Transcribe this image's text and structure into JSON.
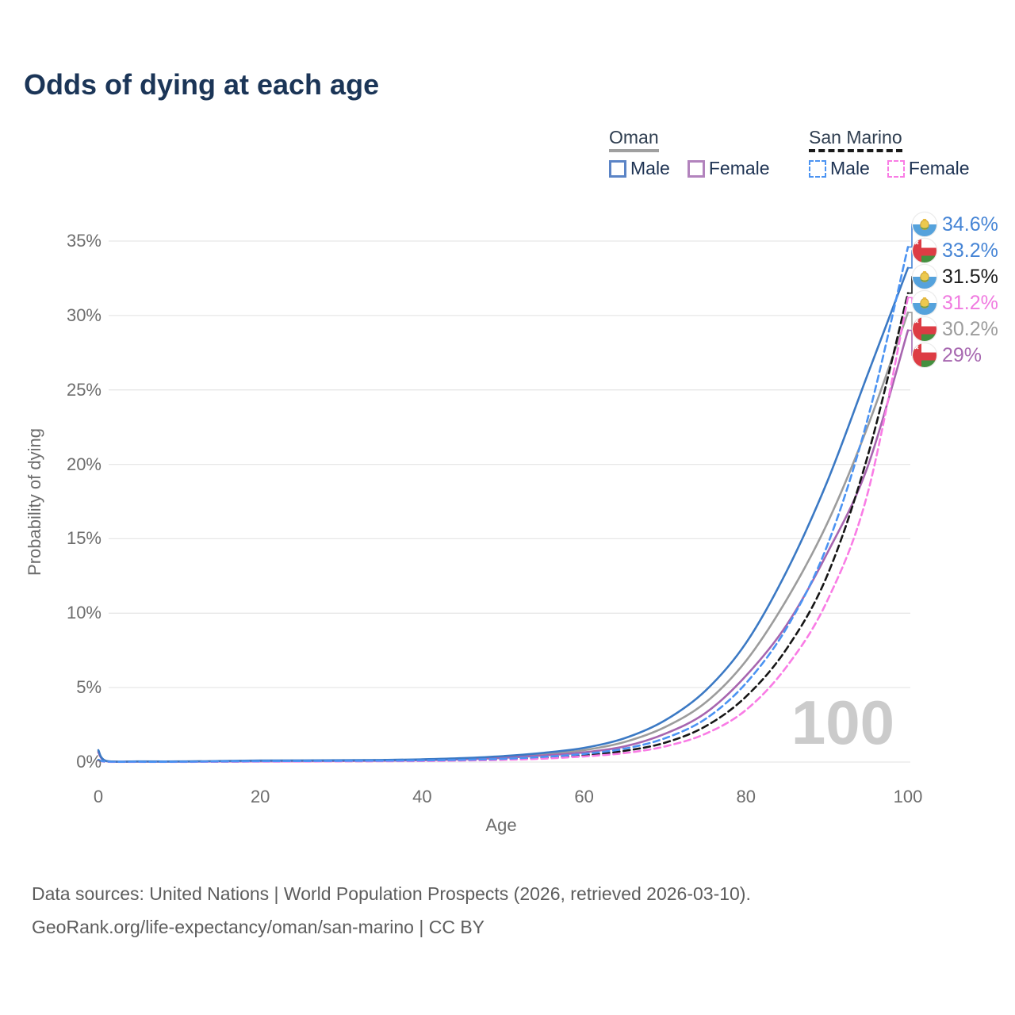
{
  "title": "Odds of dying at each age",
  "legend": {
    "groups": [
      {
        "name": "Oman",
        "line_style": "solid",
        "line_color": "#a0a0a0",
        "items": [
          {
            "label": "Male",
            "color": "#5b84c6",
            "dashed": false
          },
          {
            "label": "Female",
            "color": "#b283bd",
            "dashed": false
          }
        ]
      },
      {
        "name": "San Marino",
        "line_style": "dashed",
        "line_color": "#1a1a1a",
        "items": [
          {
            "label": "Male",
            "color": "#4b93f2",
            "dashed": true
          },
          {
            "label": "Female",
            "color": "#f97ce5",
            "dashed": true
          }
        ]
      }
    ]
  },
  "axes": {
    "y_title": "Probability of dying",
    "x_title": "Age",
    "y_ticks": [
      "0%",
      "5%",
      "10%",
      "15%",
      "20%",
      "25%",
      "30%",
      "35%"
    ],
    "y_tick_values": [
      0,
      5,
      10,
      15,
      20,
      25,
      30,
      35
    ],
    "x_ticks": [
      "0",
      "20",
      "40",
      "60",
      "80",
      "100"
    ],
    "x_tick_values": [
      0,
      20,
      40,
      60,
      80,
      100
    ],
    "x_range": [
      0,
      100
    ],
    "y_range_pct": [
      0,
      35
    ],
    "grid": "horizontal"
  },
  "watermark": "100",
  "chart_data": {
    "type": "line",
    "title": "Odds of dying at each age",
    "xlabel": "Age",
    "ylabel": "Probability of dying",
    "x": [
      0,
      1,
      5,
      10,
      15,
      20,
      25,
      30,
      35,
      40,
      45,
      50,
      55,
      60,
      65,
      70,
      75,
      80,
      85,
      90,
      95,
      100
    ],
    "unit": "percent",
    "series": [
      {
        "name": "San Marino Male",
        "country": "San Marino",
        "sex": "Male",
        "color": "#4b93f2",
        "label_color": "#4584d5",
        "dashed": true,
        "flag": "san-marino",
        "end_label": "34.6%",
        "values": [
          0.15,
          0.03,
          0.02,
          0.02,
          0.04,
          0.06,
          0.07,
          0.08,
          0.09,
          0.11,
          0.15,
          0.22,
          0.35,
          0.55,
          0.9,
          1.6,
          2.9,
          5.3,
          9.0,
          14.5,
          23.0,
          34.6
        ]
      },
      {
        "name": "Oman Male",
        "country": "Oman",
        "sex": "Male",
        "color": "#3b79c4",
        "label_color": "#4584d5",
        "dashed": false,
        "flag": "oman",
        "end_label": "33.2%",
        "values": [
          0.8,
          0.07,
          0.04,
          0.04,
          0.07,
          0.1,
          0.11,
          0.12,
          0.14,
          0.18,
          0.26,
          0.4,
          0.62,
          0.95,
          1.6,
          2.8,
          4.8,
          8.0,
          12.8,
          18.8,
          26.0,
          33.2
        ]
      },
      {
        "name": "San Marino Both sexes",
        "country": "San Marino",
        "sex": "Both",
        "color": "#161616",
        "label_color": "#1a1a1a",
        "dashed": true,
        "flag": "san-marino",
        "end_label": "31.5%",
        "values": [
          0.13,
          0.025,
          0.015,
          0.015,
          0.03,
          0.045,
          0.05,
          0.06,
          0.07,
          0.09,
          0.12,
          0.18,
          0.28,
          0.45,
          0.75,
          1.3,
          2.4,
          4.4,
          7.6,
          12.5,
          20.5,
          31.5
        ]
      },
      {
        "name": "San Marino Female",
        "country": "San Marino",
        "sex": "Female",
        "color": "#f97ce5",
        "label_color": "#f07ae0",
        "dashed": true,
        "flag": "san-marino",
        "end_label": "31.2%",
        "values": [
          0.12,
          0.02,
          0.01,
          0.01,
          0.02,
          0.03,
          0.035,
          0.045,
          0.055,
          0.07,
          0.1,
          0.15,
          0.23,
          0.38,
          0.6,
          1.05,
          1.9,
          3.5,
          6.4,
          10.8,
          18.0,
          31.2
        ]
      },
      {
        "name": "Oman Both sexes",
        "country": "Oman",
        "sex": "Both",
        "color": "#9c9c9c",
        "label_color": "#9c9c9c",
        "dashed": false,
        "flag": "oman",
        "end_label": "30.2%",
        "values": [
          0.72,
          0.065,
          0.035,
          0.035,
          0.055,
          0.075,
          0.085,
          0.095,
          0.115,
          0.15,
          0.22,
          0.34,
          0.53,
          0.8,
          1.35,
          2.35,
          4.0,
          6.8,
          10.9,
          16.0,
          22.5,
          30.2
        ]
      },
      {
        "name": "Oman Female",
        "country": "Oman",
        "sex": "Female",
        "color": "#a765af",
        "label_color": "#a768b0",
        "dashed": false,
        "flag": "oman",
        "end_label": "29%",
        "values": [
          0.65,
          0.06,
          0.03,
          0.03,
          0.04,
          0.05,
          0.06,
          0.07,
          0.09,
          0.12,
          0.18,
          0.28,
          0.44,
          0.65,
          1.05,
          1.9,
          3.3,
          5.8,
          9.2,
          14.0,
          19.8,
          29.0
        ]
      }
    ]
  },
  "footer": {
    "line1": "Data sources: United Nations | World Population Prospects (2026, retrieved 2026-03-10).",
    "line2": "GeoRank.org/life-expectancy/oman/san-marino | CC BY"
  }
}
